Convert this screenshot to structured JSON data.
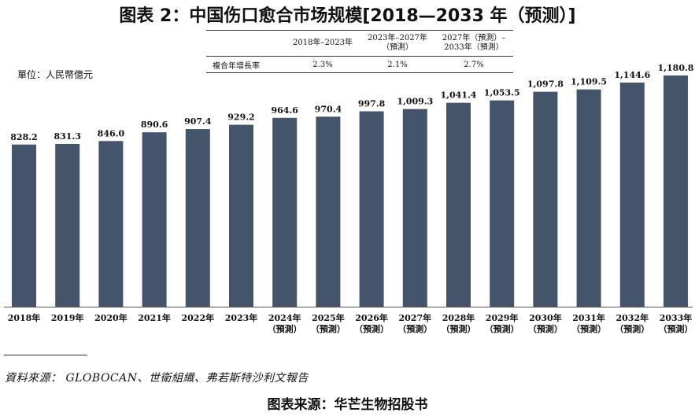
{
  "title": "图表 2：中国伤口愈合市场规模[2018—2033 年（预测）]",
  "unit_label": "單位：人民幣億元",
  "cagr_table": {
    "headers": [
      "2018年–2023年",
      "2023年–2027年（預測）",
      "2027年（預測）–2033年（預測）"
    ],
    "row_label": "複合年增長率",
    "values": [
      "2.3%",
      "2.1%",
      "2.7%"
    ]
  },
  "chart_data": {
    "type": "bar",
    "categories": [
      "2018年",
      "2019年",
      "2020年",
      "2021年",
      "2022年",
      "2023年",
      "2024年",
      "2025年",
      "2026年",
      "2027年",
      "2028年",
      "2029年",
      "2030年",
      "2031年",
      "2032年",
      "2033年"
    ],
    "category_sublabels": [
      "",
      "",
      "",
      "",
      "",
      "",
      "（預測）",
      "（預測）",
      "（預測）",
      "（預測）",
      "（預測）",
      "（預測）",
      "（預測）",
      "（預測）",
      "（預測）",
      "（預測）"
    ],
    "values": [
      828.2,
      831.3,
      846.0,
      890.6,
      907.4,
      929.2,
      964.6,
      970.4,
      997.8,
      1009.3,
      1041.4,
      1053.5,
      1097.8,
      1109.5,
      1144.6,
      1180.8
    ],
    "data_labels": [
      "828.2",
      "831.3",
      "846.0",
      "890.6",
      "907.4",
      "929.2",
      "964.6",
      "970.4",
      "997.8",
      "1,009.3",
      "1,041.4",
      "1,053.5",
      "1,097.8",
      "1,109.5",
      "1,144.6",
      "1,180.8"
    ],
    "bar_color": "#44546a",
    "ylim": [
      0,
      1200
    ],
    "grid": false
  },
  "source_note": "資料來源： GLOBOCAN、世衛組織、弗若斯特沙利文報告",
  "source_footer": "图表来源：华芒生物招股书"
}
